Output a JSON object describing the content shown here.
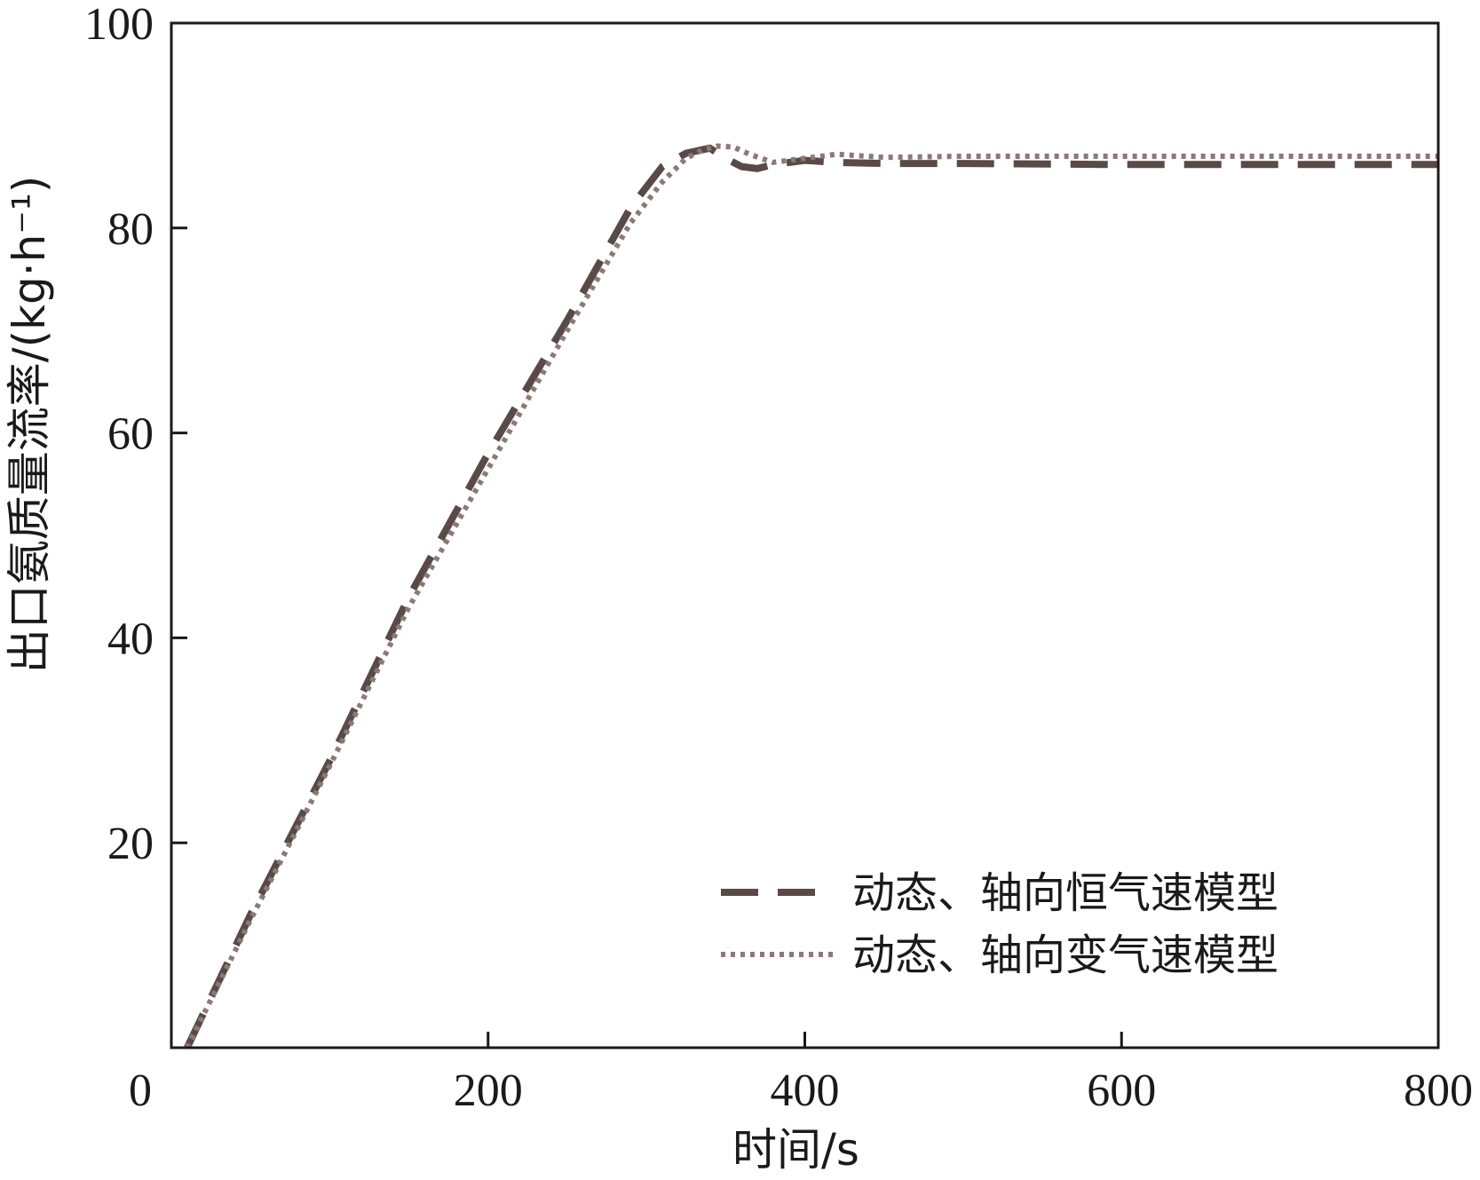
{
  "chart_data": {
    "type": "line",
    "title": "",
    "xlabel": "时间/s",
    "ylabel": "出口氨质量流率/(kg·h⁻¹)",
    "xlim": [
      0,
      800
    ],
    "ylim": [
      0,
      100
    ],
    "xticks": [
      0,
      200,
      400,
      600,
      800
    ],
    "yticks": [
      20,
      40,
      60,
      80,
      100
    ],
    "grid": false,
    "legend_position": "bottom-right",
    "series": [
      {
        "name": "动态、轴向恒气速模型",
        "style": "dashed",
        "color": "#5a4a47",
        "x": [
          10,
          50,
          100,
          150,
          200,
          250,
          290,
          310,
          325,
          340,
          350,
          360,
          370,
          380,
          400,
          420,
          450,
          500,
          600,
          700,
          800
        ],
        "y": [
          0,
          13,
          28,
          44,
          58,
          71,
          82,
          86,
          87.3,
          87.8,
          86.8,
          86.0,
          85.8,
          86.2,
          86.6,
          86.4,
          86.3,
          86.3,
          86.2,
          86.2,
          86.2
        ]
      },
      {
        "name": "动态、轴向变气速模型",
        "style": "dotted",
        "color": "#8a7a77",
        "x": [
          10,
          50,
          100,
          150,
          200,
          250,
          290,
          310,
          325,
          335,
          345,
          355,
          365,
          380,
          400,
          420,
          450,
          500,
          600,
          700,
          800
        ],
        "y": [
          0,
          12.5,
          27.5,
          43,
          56.5,
          70,
          80.5,
          84.5,
          86.8,
          87.6,
          88.0,
          87.9,
          87.2,
          86.4,
          86.8,
          87.2,
          86.9,
          87.0,
          87.0,
          87.0,
          87.0
        ]
      }
    ]
  }
}
